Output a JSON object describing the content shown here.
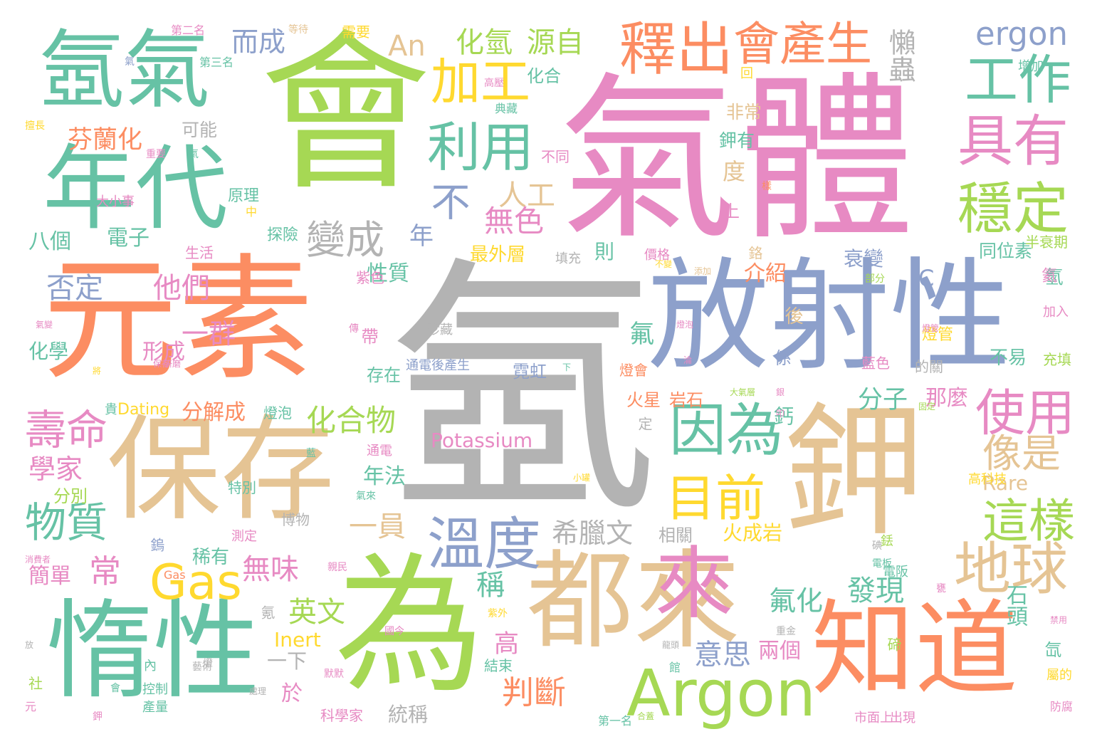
{
  "palette": {
    "green": "#66c2a5",
    "orange": "#fc8d62",
    "blue": "#8da0cb",
    "pink": "#e78ac3",
    "lime": "#a6d854",
    "yellow": "#ffd92f",
    "tan": "#e5c494",
    "gray": "#b3b3b3"
  },
  "words": [
    {
      "t": "氬",
      "c": "gray"
    },
    {
      "t": "氣體",
      "c": "pink"
    },
    {
      "t": "會",
      "c": "lime"
    },
    {
      "t": "元素",
      "c": "orange"
    },
    {
      "t": "放射性",
      "c": "blue"
    },
    {
      "t": "鉀",
      "c": "tan"
    },
    {
      "t": "為",
      "c": "lime"
    },
    {
      "t": "都來",
      "c": "tan"
    },
    {
      "t": "知道",
      "c": "orange"
    },
    {
      "t": "保存",
      "c": "tan"
    },
    {
      "t": "惰性",
      "c": "green"
    },
    {
      "t": "年代",
      "c": "green"
    },
    {
      "t": "氬氣",
      "c": "green"
    },
    {
      "t": "來",
      "c": "pink"
    },
    {
      "t": "Argon",
      "c": "lime"
    },
    {
      "t": "釋出",
      "c": "orange"
    },
    {
      "t": "因為",
      "c": "green"
    },
    {
      "t": "溫度",
      "c": "blue"
    },
    {
      "t": "工作",
      "c": "green"
    },
    {
      "t": "具有",
      "c": "pink"
    },
    {
      "t": "穩定",
      "c": "lime"
    },
    {
      "t": "地球",
      "c": "tan"
    },
    {
      "t": "使用",
      "c": "pink"
    },
    {
      "t": "利用",
      "c": "green"
    },
    {
      "t": "加工",
      "c": "yellow"
    },
    {
      "t": "會產生",
      "c": "orange"
    },
    {
      "t": "目前",
      "c": "yellow"
    },
    {
      "t": "這樣",
      "c": "lime"
    },
    {
      "t": "像是",
      "c": "tan"
    },
    {
      "t": "Gas",
      "c": "yellow"
    },
    {
      "t": "變成",
      "c": "gray"
    },
    {
      "t": "壽命",
      "c": "pink"
    },
    {
      "t": "物質",
      "c": "green"
    },
    {
      "t": "不",
      "c": "blue"
    },
    {
      "t": "ergon",
      "c": "blue"
    },
    {
      "t": "化氫",
      "c": "lime"
    },
    {
      "t": "源自",
      "c": "lime"
    },
    {
      "t": "An",
      "c": "tan"
    },
    {
      "t": "而成",
      "c": "blue"
    },
    {
      "t": "懶蟲",
      "c": "gray"
    },
    {
      "t": "芬蘭化",
      "c": "orange"
    },
    {
      "t": "人工",
      "c": "tan"
    },
    {
      "t": "無色",
      "c": "pink"
    },
    {
      "t": "化合物",
      "c": "lime"
    },
    {
      "t": "判斷",
      "c": "orange"
    },
    {
      "t": "希臘文",
      "c": "gray"
    },
    {
      "t": "一員",
      "c": "tan"
    },
    {
      "t": "英文",
      "c": "lime"
    },
    {
      "t": "無味",
      "c": "pink"
    },
    {
      "t": "他們",
      "c": "pink"
    },
    {
      "t": "一群",
      "c": "pink"
    },
    {
      "t": "否定",
      "c": "blue"
    },
    {
      "t": "學家",
      "c": "pink"
    },
    {
      "t": "常",
      "c": "pink"
    },
    {
      "t": "意思",
      "c": "blue"
    },
    {
      "t": "發現",
      "c": "green"
    },
    {
      "t": "氟化",
      "c": "green"
    },
    {
      "t": "稱",
      "c": "green"
    },
    {
      "t": "分子",
      "c": "green"
    },
    {
      "t": "那麼",
      "c": "pink"
    },
    {
      "t": "同位素",
      "c": "green"
    },
    {
      "t": "Potassium",
      "c": "pink"
    },
    {
      "t": "分解成",
      "c": "orange"
    },
    {
      "t": "年法",
      "c": "green"
    },
    {
      "t": "性質",
      "c": "green"
    },
    {
      "t": "介紹",
      "c": "orange"
    },
    {
      "t": "氟",
      "c": "green"
    },
    {
      "t": "衰變",
      "c": "blue"
    },
    {
      "t": "最外層",
      "c": "yellow"
    },
    {
      "t": "鉀有",
      "c": "green"
    },
    {
      "t": "非常",
      "c": "tan"
    },
    {
      "t": "可能",
      "c": "gray"
    },
    {
      "t": "化合",
      "c": "green"
    },
    {
      "t": "原理",
      "c": "green"
    },
    {
      "t": "電子",
      "c": "green"
    },
    {
      "t": "八個",
      "c": "green"
    },
    {
      "t": "化學",
      "c": "green"
    },
    {
      "t": "形成",
      "c": "pink"
    },
    {
      "t": "存在",
      "c": "green"
    },
    {
      "t": "簡單",
      "c": "pink"
    },
    {
      "t": "分別",
      "c": "lime"
    },
    {
      "t": "Inert",
      "c": "yellow"
    },
    {
      "t": "高",
      "c": "pink"
    },
    {
      "t": "一下",
      "c": "gray"
    },
    {
      "t": "於",
      "c": "pink"
    },
    {
      "t": "統稱",
      "c": "gray"
    },
    {
      "t": "兩個",
      "c": "pink"
    },
    {
      "t": "火成岩",
      "c": "yellow"
    },
    {
      "t": "石頭",
      "c": "green"
    },
    {
      "t": "Rare",
      "c": "tan"
    },
    {
      "t": "C",
      "c": "blue"
    },
    {
      "t": "年",
      "c": "blue"
    },
    {
      "t": "上",
      "c": "pink"
    },
    {
      "t": "則",
      "c": "green"
    },
    {
      "t": "度",
      "c": "tan"
    },
    {
      "t": "稀有",
      "c": "green"
    },
    {
      "t": "相關",
      "c": "gray"
    },
    {
      "t": "霓虹",
      "c": "blue"
    },
    {
      "t": "燈管",
      "c": "yellow"
    },
    {
      "t": "鈣",
      "c": "green"
    },
    {
      "t": "探險",
      "c": "green"
    },
    {
      "t": "生活",
      "c": "pink"
    },
    {
      "t": "帶",
      "c": "pink"
    },
    {
      "t": "火星",
      "c": "orange"
    },
    {
      "t": "岩石",
      "c": "orange"
    },
    {
      "t": "博物",
      "c": "gray"
    },
    {
      "t": "特別",
      "c": "green"
    },
    {
      "t": "不同",
      "c": "pink"
    },
    {
      "t": "Dating",
      "c": "yellow"
    },
    {
      "t": "藍色",
      "c": "pink"
    },
    {
      "t": "不易",
      "c": "green"
    },
    {
      "t": "充填",
      "c": "lime"
    },
    {
      "t": "加入",
      "c": "pink"
    },
    {
      "t": "氫",
      "c": "green"
    },
    {
      "t": "後",
      "c": "tan"
    },
    {
      "t": "係",
      "c": "blue"
    },
    {
      "t": "的關",
      "c": "gray"
    },
    {
      "t": "燈泡",
      "c": "green"
    },
    {
      "t": "第一名",
      "c": "green"
    },
    {
      "t": "第二名",
      "c": "pink"
    },
    {
      "t": "第三名",
      "c": "green"
    },
    {
      "t": "半衰期",
      "c": "lime"
    },
    {
      "t": "高科技",
      "c": "yellow"
    },
    {
      "t": "需要",
      "c": "yellow"
    },
    {
      "t": "鉻",
      "c": "tan"
    },
    {
      "t": "珍藏",
      "c": "gray"
    },
    {
      "t": "大小事",
      "c": "pink"
    },
    {
      "t": "中",
      "c": "yellow"
    },
    {
      "t": "紫色",
      "c": "pink"
    },
    {
      "t": "通電後產生",
      "c": "blue"
    },
    {
      "t": "科學家",
      "c": "pink"
    },
    {
      "t": "市面上",
      "c": "pink"
    },
    {
      "t": "出現",
      "c": "pink"
    },
    {
      "t": "產量",
      "c": "green"
    },
    {
      "t": "控制",
      "c": "green"
    },
    {
      "t": "電阪",
      "c": "green"
    },
    {
      "t": "碲",
      "c": "lime"
    },
    {
      "t": "防腐",
      "c": "pink"
    },
    {
      "t": "增加",
      "c": "green"
    },
    {
      "t": "回",
      "c": "yellow"
    },
    {
      "t": "測定",
      "c": "pink"
    },
    {
      "t": "填充",
      "c": "gray"
    },
    {
      "t": "價格",
      "c": "pink"
    },
    {
      "t": "結束",
      "c": "green"
    },
    {
      "t": "通電",
      "c": "pink"
    },
    {
      "t": "鎢",
      "c": "blue"
    },
    {
      "t": "貴",
      "c": "green"
    },
    {
      "t": "內",
      "c": "green"
    },
    {
      "t": "社",
      "c": "lime"
    },
    {
      "t": "氪",
      "c": "gray"
    },
    {
      "t": "定",
      "c": "gray"
    },
    {
      "t": "屬的",
      "c": "yellow"
    },
    {
      "t": "氙",
      "c": "green"
    },
    {
      "t": "氦",
      "c": "pink"
    },
    {
      "t": "燈會",
      "c": "orange"
    },
    {
      "t": "銩",
      "c": "lime"
    },
    {
      "t": "Gas",
      "c": "orange"
    }
  ],
  "small": [
    {
      "t": "氣",
      "c": "blue"
    },
    {
      "t": "擅長",
      "c": "yellow"
    },
    {
      "t": "重要",
      "c": "pink"
    },
    {
      "t": "氣",
      "c": "green"
    },
    {
      "t": "高壓",
      "c": "pink"
    },
    {
      "t": "典藏",
      "c": "green"
    },
    {
      "t": "等待",
      "c": "tan"
    },
    {
      "t": "不變",
      "c": "yellow"
    },
    {
      "t": "添加",
      "c": "tan"
    },
    {
      "t": "部分",
      "c": "lime"
    },
    {
      "t": "淪",
      "c": "pink"
    },
    {
      "t": "樣",
      "c": "orange"
    },
    {
      "t": "傳",
      "c": "pink"
    },
    {
      "t": "下",
      "c": "green"
    },
    {
      "t": "大氣層",
      "c": "lime"
    },
    {
      "t": "燈泡",
      "c": "pink"
    },
    {
      "t": "銀",
      "c": "pink"
    },
    {
      "t": "氣變",
      "c": "pink"
    },
    {
      "t": "將",
      "c": "yellow"
    },
    {
      "t": "燈管",
      "c": "pink"
    },
    {
      "t": "小罐",
      "c": "yellow"
    },
    {
      "t": "研磨",
      "c": "pink"
    },
    {
      "t": "藍",
      "c": "green"
    },
    {
      "t": "消費者",
      "c": "pink"
    },
    {
      "t": "保存",
      "c": "pink"
    },
    {
      "t": "固定",
      "c": "lime"
    },
    {
      "t": "氣來",
      "c": "green"
    },
    {
      "t": "藝術",
      "c": "gray"
    },
    {
      "t": "碘",
      "c": "gray"
    },
    {
      "t": "紫外",
      "c": "yellow"
    },
    {
      "t": "國今",
      "c": "pink"
    },
    {
      "t": "重金",
      "c": "gray"
    },
    {
      "t": "龍頭",
      "c": "gray"
    },
    {
      "t": "館",
      "c": "green"
    },
    {
      "t": "默默",
      "c": "pink"
    },
    {
      "t": "處理",
      "c": "gray"
    },
    {
      "t": "電板",
      "c": "green"
    },
    {
      "t": "放",
      "c": "gray"
    },
    {
      "t": "會",
      "c": "green"
    },
    {
      "t": "禁用",
      "c": "pink"
    },
    {
      "t": "元",
      "c": "pink"
    },
    {
      "t": "合蓋",
      "c": "lime"
    },
    {
      "t": "叩",
      "c": "pink"
    },
    {
      "t": "親民",
      "c": "pink"
    },
    {
      "t": "燈",
      "c": "gray"
    },
    {
      "t": "鉀",
      "c": "pink"
    },
    {
      "t": "甕",
      "c": "pink"
    }
  ]
}
